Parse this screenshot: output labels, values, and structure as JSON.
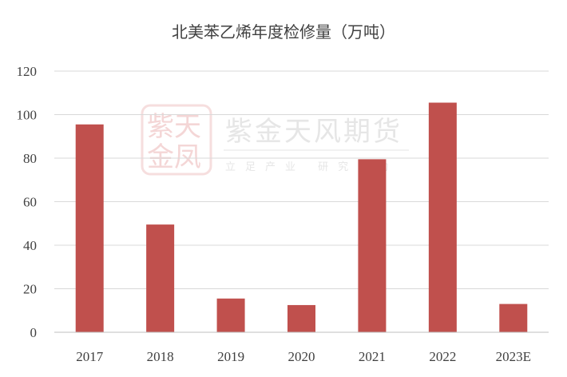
{
  "chart_data": {
    "type": "bar",
    "title": "北美苯乙烯年度检修量（万吨）",
    "categories": [
      "2017",
      "2018",
      "2019",
      "2020",
      "2021",
      "2022",
      "2023E"
    ],
    "values": [
      95.5,
      49.5,
      15.5,
      12.5,
      79.5,
      105.5,
      13
    ],
    "ylim": [
      0,
      120
    ],
    "yticks": [
      0,
      20,
      40,
      60,
      80,
      100,
      120
    ],
    "grid": true,
    "legend": "none",
    "bar_color": "#c0504d"
  },
  "watermark": {
    "name": "紫金天风期货",
    "slogan": "立足产业 研究驱动",
    "seal_top": "紫天",
    "seal_bottom": "金凤"
  }
}
